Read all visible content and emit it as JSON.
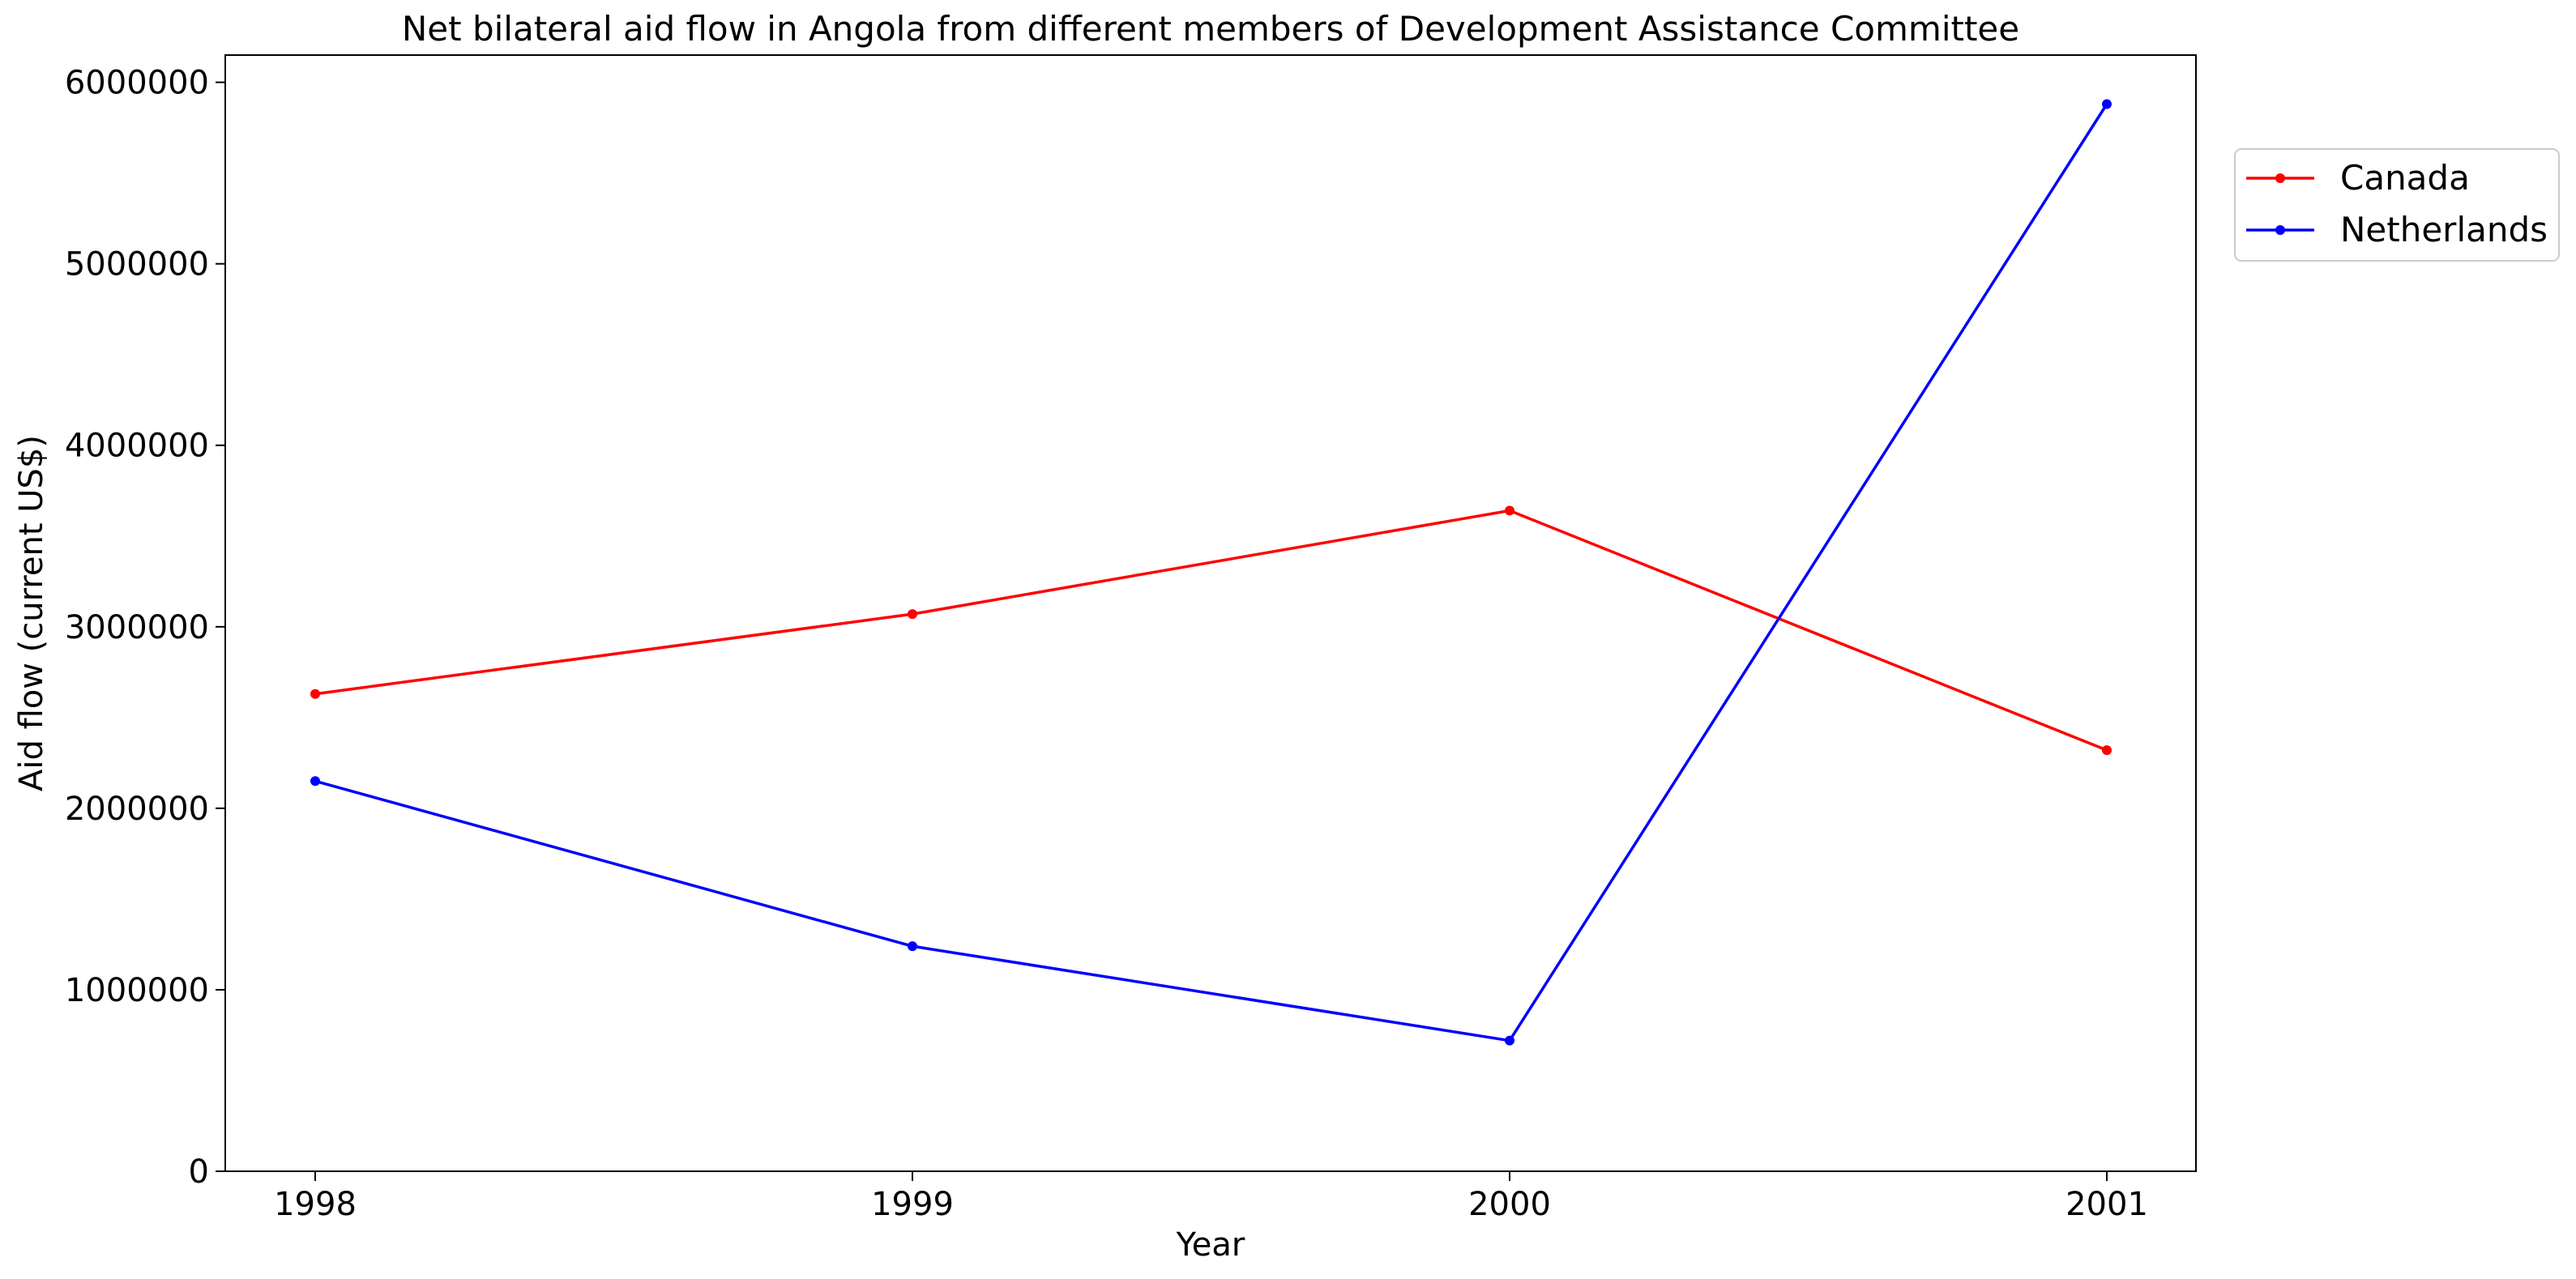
{
  "chart_data": {
    "type": "line",
    "title": "Net bilateral aid flow in Angola from different members of Development Assistance Committee",
    "xlabel": "Year",
    "ylabel": "Aid flow (current US$)",
    "categories": [
      "1998",
      "1999",
      "2000",
      "2001"
    ],
    "ylim": [
      0,
      6150000
    ],
    "yticks": [
      0,
      1000000,
      2000000,
      3000000,
      4000000,
      5000000,
      6000000
    ],
    "ytick_labels": [
      "0",
      "1000000",
      "2000000",
      "3000000",
      "4000000",
      "5000000",
      "6000000"
    ],
    "grid": false,
    "legend_position": "outside-right-top",
    "series": [
      {
        "name": "Canada",
        "color": "#ff0000",
        "values": [
          2630000,
          3070000,
          3640000,
          2320000
        ]
      },
      {
        "name": "Netherlands",
        "color": "#0000ff",
        "values": [
          2150000,
          1240000,
          720000,
          5880000
        ]
      }
    ]
  }
}
